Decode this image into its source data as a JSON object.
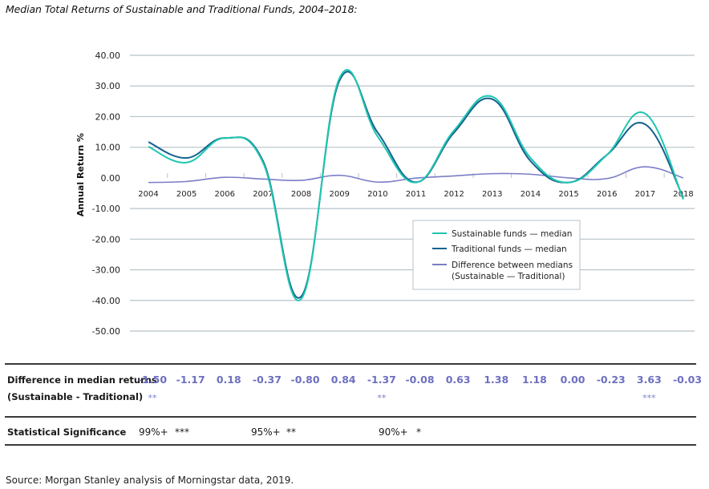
{
  "title": "Median Total Returns of Sustainable and Traditional Funds, 2004–2018:",
  "source": "Source: Morgan Stanley analysis of Morningstar data, 2019.",
  "colors": {
    "sustainable": "#1fc6b0",
    "traditional": "#12618f",
    "difference": "#7b7dc8",
    "grid": "#b8c2c8",
    "table_value": "#6d6fc0"
  },
  "chart_data": {
    "type": "line",
    "title": "Median Total Returns of Sustainable and Traditional Funds, 2004–2018:",
    "xlabel": "",
    "ylabel": "Annual Return  %",
    "ylim": [
      -50,
      40
    ],
    "yticks": [
      40,
      30,
      20,
      10,
      0,
      -10,
      -20,
      -30,
      -40,
      -50
    ],
    "ytick_labels": [
      "40.00",
      "30.00",
      "20.00",
      "10.00",
      "0.00",
      "-10.00",
      "-20.00",
      "-30.00",
      "-40.00",
      "-50.00"
    ],
    "grid": true,
    "legend_position": "center-right",
    "x": [
      "2004",
      "2005",
      "2006",
      "2007",
      "2008",
      "2009",
      "2010",
      "2011",
      "2012",
      "2013",
      "2014",
      "2015",
      "2016",
      "2017",
      "2018"
    ],
    "series": [
      {
        "name": "Sustainable funds — median",
        "color": "#1fc6b0",
        "values": [
          10.2,
          5.0,
          13.0,
          5.0,
          -39.5,
          32.5,
          13.5,
          -1.5,
          15.5,
          26.5,
          6.5,
          -1.5,
          7.5,
          21.0,
          -7.0
        ]
      },
      {
        "name": "Traditional funds — median",
        "color": "#12618f",
        "values": [
          11.7,
          6.5,
          13.0,
          5.5,
          -38.7,
          31.7,
          14.8,
          -1.4,
          14.8,
          25.7,
          5.5,
          -1.5,
          7.5,
          17.5,
          -6.5
        ]
      },
      {
        "name": "Difference between medians (Sustainable — Traditional)",
        "color": "#7b7dc8",
        "values": [
          -1.5,
          -1.17,
          0.18,
          -0.37,
          -0.8,
          0.84,
          -1.37,
          -0.08,
          0.63,
          1.38,
          1.18,
          0.0,
          -0.23,
          3.63,
          -0.03
        ]
      }
    ],
    "legend": [
      "Sustainable funds — median",
      "Traditional funds — median",
      "Difference between medians",
      "(Sustainable — Traditional)"
    ]
  },
  "table": {
    "difference_label_line1": "Difference in median returns",
    "difference_label_line2": "(Sustainable - Traditional)",
    "difference_values": [
      "-1.50",
      "-1.17",
      "0.18",
      "-0.37",
      "-0.80",
      "0.84",
      "-1.37",
      "-0.08",
      "0.63",
      "1.38",
      "1.18",
      "0.00",
      "-0.23",
      "3.63",
      "-0.03"
    ],
    "difference_stars": [
      "**",
      "",
      "",
      "",
      "",
      "",
      "**",
      "",
      "",
      "",
      "",
      "",
      "",
      "***",
      ""
    ],
    "significance_label": "Statistical Significance",
    "significance_legend": [
      {
        "level": "99%+",
        "stars": "***"
      },
      {
        "level": "95%+",
        "stars": "**"
      },
      {
        "level": "90%+",
        "stars": "*"
      }
    ]
  }
}
